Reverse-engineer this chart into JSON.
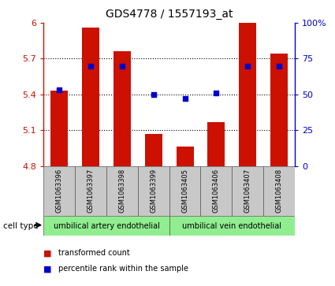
{
  "title": "GDS4778 / 1557193_at",
  "samples": [
    "GSM1063396",
    "GSM1063397",
    "GSM1063398",
    "GSM1063399",
    "GSM1063405",
    "GSM1063406",
    "GSM1063407",
    "GSM1063408"
  ],
  "bar_values": [
    5.43,
    5.96,
    5.76,
    5.07,
    4.96,
    5.17,
    6.0,
    5.74
  ],
  "percentile_values": [
    5.435,
    5.635,
    5.635,
    5.4,
    5.365,
    5.41,
    5.635,
    5.635
  ],
  "ymin": 4.8,
  "ymax": 6.0,
  "yticks": [
    4.8,
    5.1,
    5.4,
    5.7,
    6.0
  ],
  "ytick_labels": [
    "4.8",
    "5.1",
    "5.4",
    "5.7",
    "6"
  ],
  "y2ticks": [
    0,
    25,
    50,
    75,
    100
  ],
  "y2tick_labels": [
    "0",
    "25",
    "50",
    "75",
    "100%"
  ],
  "bar_color": "#cc1100",
  "dot_color": "#0000cc",
  "cell_types": [
    {
      "label": "umbilical artery endothelial",
      "start": 0,
      "end": 4,
      "color": "#90ee90"
    },
    {
      "label": "umbilical vein endothelial",
      "start": 4,
      "end": 8,
      "color": "#90ee90"
    }
  ],
  "cell_type_label": "cell type",
  "legend_items": [
    {
      "color": "#cc1100",
      "label": "transformed count"
    },
    {
      "color": "#0000cc",
      "label": "percentile rank within the sample"
    }
  ],
  "axis_color_left": "#cc1100",
  "axis_color_right": "#0000cc",
  "bar_width": 0.55,
  "gray_color": "#c8c8c8",
  "background_color": "#ffffff"
}
